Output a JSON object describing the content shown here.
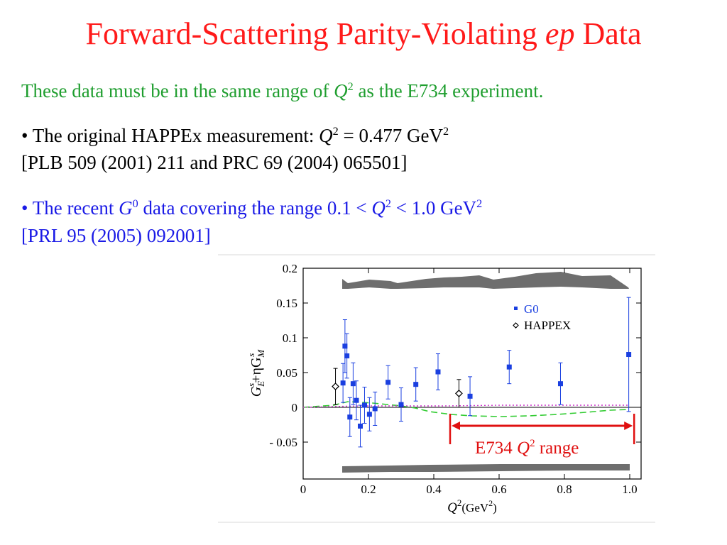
{
  "slide": {
    "title_main": "Forward-Scattering Parity-Violating ",
    "title_italic": "ep",
    "title_end": " Data",
    "intro": {
      "pre": "These data must be in the same range of ",
      "q": "Q",
      "sup": "2",
      "post": " as the E734 experiment."
    },
    "bullet1": {
      "pre": "• The original HAPPEx measurement: ",
      "q": "Q",
      "sup": "2",
      "mid": " = 0.477 GeV",
      "sup2": "2",
      "ref": "[PLB 509 (2001) 211  and  PRC 69 (2004) 065501]"
    },
    "bullet2": {
      "pre": "• The recent ",
      "g": "G",
      "gsup": "0",
      "mid": " data covering the range 0.1 < ",
      "q": "Q",
      "qsup": "2",
      "post": " < 1.0 GeV",
      "sup2": "2",
      "ref": "[PRL 95 (2005) 092001]"
    }
  },
  "colors": {
    "title": "#ff1a1a",
    "intro": "#1f9e2f",
    "bullet2": "#1a1ae6",
    "g0_points": "#1a3fe0",
    "annotation": "#e01010",
    "band": "#6e6e6e",
    "green_curve": "#33cc33",
    "magenta_curve": "#cc33cc"
  },
  "chart_data": {
    "type": "scatter",
    "xlabel_main": "Q",
    "xlabel_sup": "2",
    "xlabel_unit": "(GeV",
    "xlabel_unit_sup": "2",
    "xlabel_close": ")",
    "ylabel_g": "G",
    "ylabel_sub1": "E",
    "ylabel_sup1": "s",
    "ylabel_mid": "+ηG",
    "ylabel_sub2": "M",
    "ylabel_sup2": "s",
    "xlim": [
      0,
      1.0
    ],
    "ylim": [
      -0.1,
      0.2
    ],
    "x_ticks": [
      "0",
      "0.2",
      "0.4",
      "0.6",
      "0.8",
      "1.0"
    ],
    "x_tick_values": [
      0,
      0.2,
      0.4,
      0.6,
      0.8,
      1.0
    ],
    "y_ticks": [
      "0.2",
      "0.15",
      "0.1",
      "0.05",
      "0",
      "- 0.05"
    ],
    "y_tick_values": [
      0.2,
      0.15,
      0.1,
      0.05,
      0,
      -0.05
    ],
    "legend": [
      "G0",
      "HAPPEX"
    ],
    "legend_position": "top-right",
    "series": [
      {
        "name": "G0",
        "marker": "filled-square",
        "points": [
          [
            0.122,
            0.035,
            0.028
          ],
          [
            0.128,
            0.088,
            0.038
          ],
          [
            0.134,
            0.074,
            0.032
          ],
          [
            0.143,
            -0.014,
            0.028
          ],
          [
            0.153,
            0.034,
            0.03
          ],
          [
            0.163,
            0.01,
            0.028
          ],
          [
            0.175,
            -0.027,
            0.03
          ],
          [
            0.188,
            0.003,
            0.026
          ],
          [
            0.203,
            -0.01,
            0.024
          ],
          [
            0.22,
            -0.002,
            0.024
          ],
          [
            0.26,
            0.036,
            0.024
          ],
          [
            0.3,
            0.004,
            0.024
          ],
          [
            0.345,
            0.033,
            0.024
          ],
          [
            0.413,
            0.051,
            0.026
          ],
          [
            0.511,
            0.016,
            0.028
          ],
          [
            0.631,
            0.058,
            0.024
          ],
          [
            0.788,
            0.034,
            0.03
          ],
          [
            0.997,
            0.076,
            0.082
          ]
        ]
      },
      {
        "name": "HAPPEX",
        "marker": "open-diamond",
        "points": [
          [
            0.099,
            0.03,
            0.026
          ],
          [
            0.477,
            0.02,
            0.02
          ]
        ]
      }
    ],
    "annotation": {
      "text_pre": "E734 ",
      "text_q": "Q",
      "text_sup": "2",
      "text_post": " range",
      "x_range": [
        0.45,
        1.02
      ]
    }
  }
}
